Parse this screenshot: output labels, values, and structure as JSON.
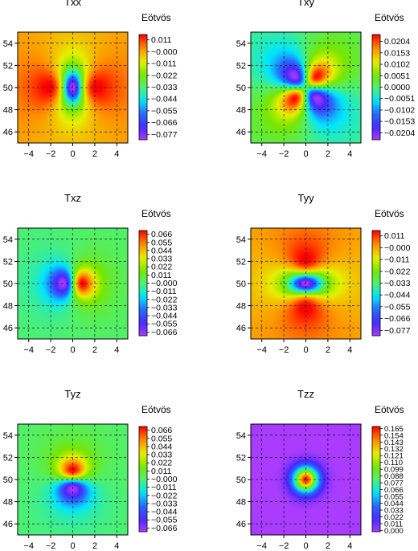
{
  "chart_data": [
    {
      "type": "heatmap",
      "component": "xx",
      "title": "Txx",
      "colorbar_label": "Eötvös",
      "colorbar_ticks": [
        "0.011",
        "-0.000",
        "-0.011",
        "-0.022",
        "-0.033",
        "-0.044",
        "-0.055",
        "-0.066",
        "-0.077"
      ],
      "value_range": [
        -0.082,
        0.016
      ],
      "xlim": [
        -5,
        5
      ],
      "ylim": [
        45,
        55
      ],
      "x_ticks": [
        "-4",
        "-2",
        "0",
        "2",
        "4"
      ],
      "y_ticks": [
        "46",
        "48",
        "50",
        "52",
        "54"
      ]
    },
    {
      "type": "heatmap",
      "component": "xy",
      "title": "Txy",
      "colorbar_label": "Eötvös",
      "colorbar_ticks": [
        "0.0204",
        "0.0153",
        "0.0102",
        "0.0051",
        "0.0000",
        "-0.0051",
        "-0.0102",
        "-0.0153",
        "-0.0204"
      ],
      "value_range": [
        -0.0235,
        0.0235
      ],
      "xlim": [
        -5,
        5
      ],
      "ylim": [
        45,
        55
      ],
      "x_ticks": [
        "-4",
        "-2",
        "0",
        "2",
        "4"
      ],
      "y_ticks": [
        "46",
        "48",
        "50",
        "52",
        "54"
      ]
    },
    {
      "type": "heatmap",
      "component": "xz",
      "title": "Txz",
      "colorbar_label": "Eötvös",
      "colorbar_ticks": [
        "0.066",
        "0.055",
        "0.044",
        "0.033",
        "0.022",
        "0.011",
        "-0.000",
        "-0.011",
        "-0.022",
        "-0.033",
        "-0.044",
        "-0.055",
        "-0.066"
      ],
      "value_range": [
        -0.071,
        0.071
      ],
      "xlim": [
        -5,
        5
      ],
      "ylim": [
        45,
        55
      ],
      "x_ticks": [
        "-4",
        "-2",
        "0",
        "2",
        "4"
      ],
      "y_ticks": [
        "46",
        "48",
        "50",
        "52",
        "54"
      ]
    },
    {
      "type": "heatmap",
      "component": "yy",
      "title": "Tyy",
      "colorbar_label": "Eötvös",
      "colorbar_ticks": [
        "0.011",
        "-0.000",
        "-0.011",
        "-0.022",
        "-0.033",
        "-0.044",
        "-0.055",
        "-0.066",
        "-0.077"
      ],
      "value_range": [
        -0.082,
        0.016
      ],
      "xlim": [
        -5,
        5
      ],
      "ylim": [
        45,
        55
      ],
      "x_ticks": [
        "-4",
        "-2",
        "0",
        "2",
        "4"
      ],
      "y_ticks": [
        "46",
        "48",
        "50",
        "52",
        "54"
      ]
    },
    {
      "type": "heatmap",
      "component": "yz",
      "title": "Tyz",
      "colorbar_label": "Eötvös",
      "colorbar_ticks": [
        "0.066",
        "0.055",
        "0.044",
        "0.033",
        "0.022",
        "0.011",
        "-0.000",
        "-0.011",
        "-0.022",
        "-0.033",
        "-0.044",
        "-0.055",
        "-0.066"
      ],
      "value_range": [
        -0.071,
        0.071
      ],
      "xlim": [
        -5,
        5
      ],
      "ylim": [
        45,
        55
      ],
      "x_ticks": [
        "-4",
        "-2",
        "0",
        "2",
        "4"
      ],
      "y_ticks": [
        "46",
        "48",
        "50",
        "52",
        "54"
      ]
    },
    {
      "type": "heatmap",
      "component": "zz",
      "title": "Tzz",
      "colorbar_label": "Eötvös",
      "colorbar_ticks": [
        "0.165",
        "0.154",
        "0.143",
        "0.132",
        "0.121",
        "0.110",
        "0.099",
        "0.088",
        "0.077",
        "0.066",
        "0.055",
        "0.044",
        "0.033",
        "0.022",
        "0.011",
        "0.000"
      ],
      "value_range": [
        -0.002,
        0.168
      ],
      "xlim": [
        -5,
        5
      ],
      "ylim": [
        45,
        55
      ],
      "x_ticks": [
        "-4",
        "-2",
        "0",
        "2",
        "4"
      ],
      "y_ticks": [
        "46",
        "48",
        "50",
        "52",
        "54"
      ]
    }
  ]
}
